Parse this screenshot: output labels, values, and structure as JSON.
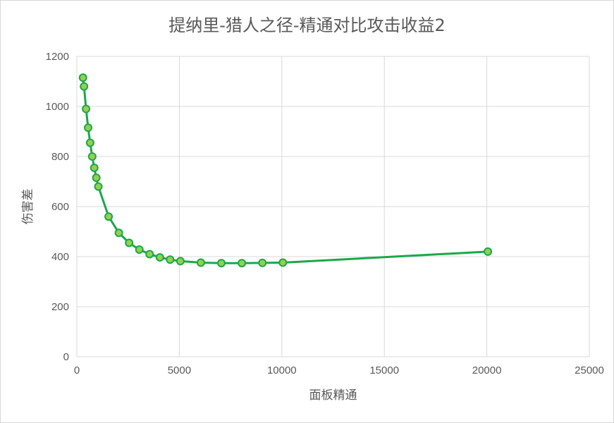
{
  "chart_data": {
    "type": "scatter",
    "title": "提纳里-猎人之径-精通对比攻击收益2",
    "xlabel": "面板精通",
    "ylabel": "伤害差",
    "xlim": [
      0,
      25000
    ],
    "ylim": [
      0,
      1200
    ],
    "x_ticks": [
      0,
      5000,
      10000,
      15000,
      20000,
      25000
    ],
    "y_ticks": [
      0,
      200,
      400,
      600,
      800,
      1000,
      1200
    ],
    "grid": true,
    "legend": "none",
    "line_color": "#1aa84a",
    "marker_fill": "#92d050",
    "marker_stroke": "#1aa84a",
    "series": [
      {
        "x": [
          300,
          350,
          450,
          550,
          650,
          750,
          850,
          950,
          1050,
          1550,
          2050,
          2550,
          3050,
          3550,
          4050,
          4550,
          5050,
          6050,
          7050,
          8050,
          9050,
          10050,
          20050
        ],
        "y": [
          1115,
          1080,
          990,
          915,
          855,
          800,
          755,
          715,
          680,
          560,
          495,
          455,
          428,
          410,
          397,
          388,
          382,
          376,
          374,
          374,
          375,
          376,
          420
        ]
      }
    ]
  }
}
